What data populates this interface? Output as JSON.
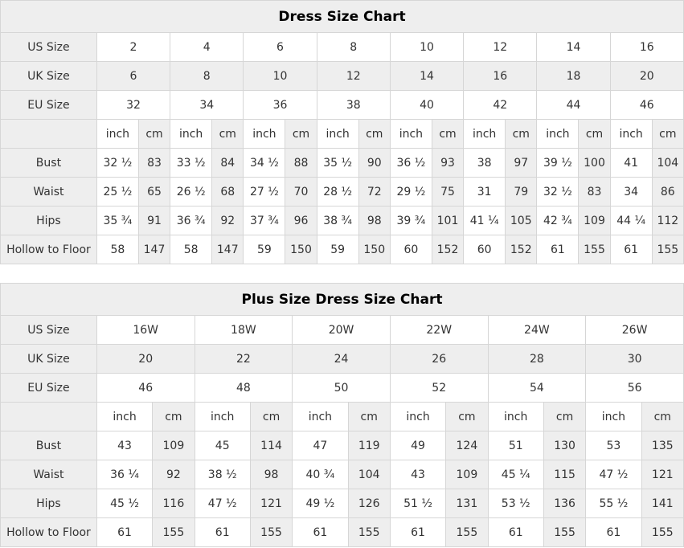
{
  "colors": {
    "cell_gray": "#eeeeee",
    "cell_white": "#ffffff",
    "border": "#d6d6d6",
    "text": "#333333",
    "title_text": "#000000"
  },
  "tables": [
    {
      "title": "Dress Size Chart",
      "size_rows": [
        {
          "label": "US Size",
          "values": [
            "2",
            "4",
            "6",
            "8",
            "10",
            "12",
            "14",
            "16"
          ]
        },
        {
          "label": "UK Size",
          "values": [
            "6",
            "8",
            "10",
            "12",
            "14",
            "16",
            "18",
            "20"
          ]
        },
        {
          "label": "EU Size",
          "values": [
            "32",
            "34",
            "36",
            "38",
            "40",
            "42",
            "44",
            "46"
          ]
        }
      ],
      "unit_labels": {
        "inch": "inch",
        "cm": "cm"
      },
      "measure_rows": [
        {
          "label": "Bust",
          "inch": [
            "32 ½",
            "33 ½",
            "34 ½",
            "35 ½",
            "36 ½",
            "38",
            "39 ½",
            "41"
          ],
          "cm": [
            "83",
            "84",
            "88",
            "90",
            "93",
            "97",
            "100",
            "104"
          ]
        },
        {
          "label": "Waist",
          "inch": [
            "25 ½",
            "26 ½",
            "27 ½",
            "28 ½",
            "29 ½",
            "31",
            "32 ½",
            "34"
          ],
          "cm": [
            "65",
            "68",
            "70",
            "72",
            "75",
            "79",
            "83",
            "86"
          ]
        },
        {
          "label": "Hips",
          "inch": [
            "35 ¾",
            "36 ¾",
            "37 ¾",
            "38 ¾",
            "39 ¾",
            "41 ¼",
            "42 ¾",
            "44 ¼"
          ],
          "cm": [
            "91",
            "92",
            "96",
            "98",
            "101",
            "105",
            "109",
            "112"
          ]
        },
        {
          "label": "Hollow to Floor",
          "inch": [
            "58",
            "58",
            "59",
            "59",
            "60",
            "60",
            "61",
            "61"
          ],
          "cm": [
            "147",
            "147",
            "150",
            "150",
            "152",
            "152",
            "155",
            "155"
          ]
        }
      ]
    },
    {
      "title": "Plus Size Dress Size Chart",
      "size_rows": [
        {
          "label": "US Size",
          "values": [
            "16W",
            "18W",
            "20W",
            "22W",
            "24W",
            "26W"
          ]
        },
        {
          "label": "UK Size",
          "values": [
            "20",
            "22",
            "24",
            "26",
            "28",
            "30"
          ]
        },
        {
          "label": "EU Size",
          "values": [
            "46",
            "48",
            "50",
            "52",
            "54",
            "56"
          ]
        }
      ],
      "unit_labels": {
        "inch": "inch",
        "cm": "cm"
      },
      "measure_rows": [
        {
          "label": "Bust",
          "inch": [
            "43",
            "45",
            "47",
            "49",
            "51",
            "53"
          ],
          "cm": [
            "109",
            "114",
            "119",
            "124",
            "130",
            "135"
          ]
        },
        {
          "label": "Waist",
          "inch": [
            "36 ¼",
            "38 ½",
            "40 ¾",
            "43",
            "45 ¼",
            "47 ½"
          ],
          "cm": [
            "92",
            "98",
            "104",
            "109",
            "115",
            "121"
          ]
        },
        {
          "label": "Hips",
          "inch": [
            "45 ½",
            "47 ½",
            "49 ½",
            "51 ½",
            "53 ½",
            "55 ½"
          ],
          "cm": [
            "116",
            "121",
            "126",
            "131",
            "136",
            "141"
          ]
        },
        {
          "label": "Hollow to Floor",
          "inch": [
            "61",
            "61",
            "61",
            "61",
            "61",
            "61"
          ],
          "cm": [
            "155",
            "155",
            "155",
            "155",
            "155",
            "155"
          ]
        }
      ]
    }
  ]
}
